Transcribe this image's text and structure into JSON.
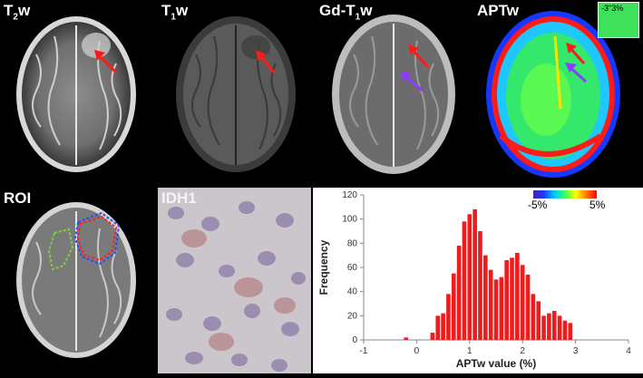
{
  "panels": {
    "t2w": {
      "base": "T",
      "sub": "2",
      "tail": "w"
    },
    "t1w": {
      "base": "T",
      "sub": "1",
      "tail": "w"
    },
    "gd_t1w": {
      "base": "Gd-T",
      "sub": "1",
      "tail": "w"
    },
    "aptw": {
      "label": "APTw",
      "inset_label": "-3\"3%"
    },
    "roi": {
      "label": "ROI"
    },
    "idh1": {
      "label": "IDH1"
    }
  },
  "colorbar": {
    "min_label": "-5%",
    "max_label": "5%"
  },
  "colors": {
    "arrow_red": "#ff1a1a",
    "arrow_purple": "#8a3cff",
    "bar_red": "#ee1c1c",
    "roi_red": "#ff2020",
    "roi_blue": "#1e50ff",
    "roi_green": "#7cd23c"
  },
  "chart_data": {
    "type": "bar",
    "xlabel": "APTw value (%)",
    "ylabel": "Frequency",
    "xlim": [
      -1,
      4
    ],
    "ylim": [
      0,
      120
    ],
    "xticks": [
      -1,
      0,
      1,
      2,
      3,
      4
    ],
    "yticks": [
      0,
      20,
      40,
      60,
      80,
      100,
      120
    ],
    "bin_width": 0.1,
    "x": [
      -0.2,
      0.3,
      0.4,
      0.5,
      0.6,
      0.7,
      0.8,
      0.9,
      1.0,
      1.1,
      1.2,
      1.3,
      1.4,
      1.5,
      1.6,
      1.7,
      1.8,
      1.9,
      2.0,
      2.1,
      2.2,
      2.3,
      2.4,
      2.5,
      2.6,
      2.7,
      2.8,
      2.9
    ],
    "values": [
      2,
      6,
      20,
      22,
      38,
      55,
      78,
      98,
      104,
      108,
      90,
      70,
      58,
      50,
      52,
      66,
      68,
      72,
      62,
      54,
      38,
      32,
      20,
      22,
      24,
      20,
      16,
      14
    ]
  }
}
